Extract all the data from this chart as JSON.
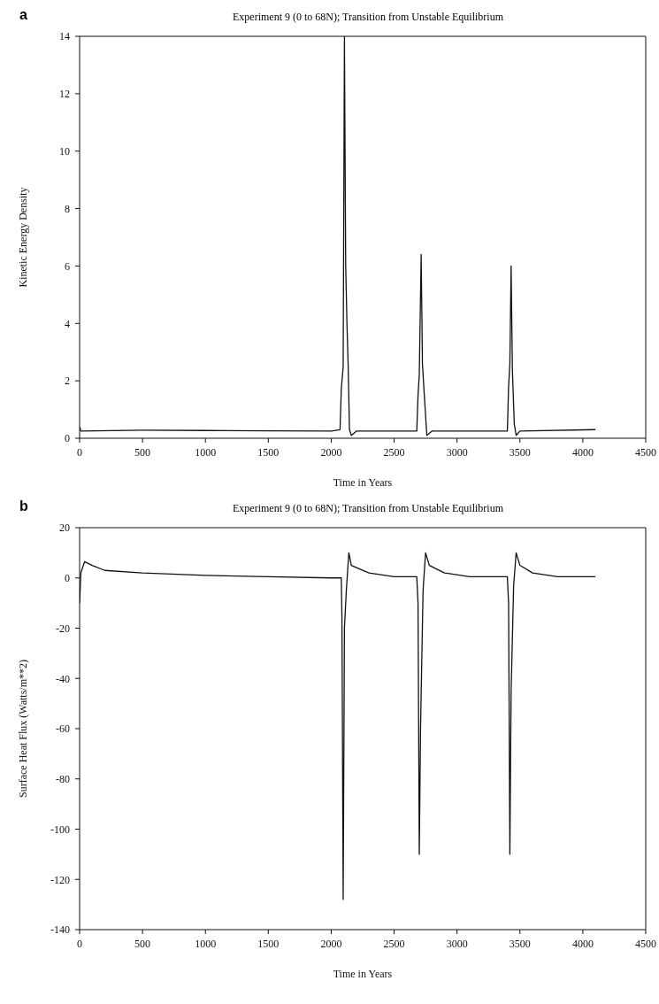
{
  "chart_data": [
    {
      "type": "line",
      "title": "Experiment 9 (0 to 68N); Transition from Unstable Equilibrium",
      "xlabel": "Time in Years",
      "ylabel": "Kinetic Energy Density",
      "annotations": [
        "a"
      ],
      "series": [
        {
          "color": "#111111",
          "x": [
            0,
            10,
            500,
            1000,
            1500,
            2000,
            2070,
            2080,
            2095,
            2105,
            2115,
            2125,
            2135,
            2145,
            2160,
            2200,
            2680,
            2690,
            2700,
            2715,
            2725,
            2740,
            2760,
            2800,
            3400,
            3410,
            3420,
            3430,
            3440,
            3455,
            3470,
            3500,
            4100
          ],
          "values": [
            0.4,
            0.25,
            0.28,
            0.27,
            0.26,
            0.25,
            0.3,
            1.7,
            2.5,
            14,
            6,
            4,
            2.5,
            0.3,
            0.1,
            0.25,
            0.25,
            1.5,
            2.2,
            6.4,
            2.6,
            1.5,
            0.1,
            0.25,
            0.25,
            1.8,
            2.6,
            6,
            2.4,
            0.5,
            0.1,
            0.25,
            0.3
          ]
        }
      ],
      "xlim": [
        0,
        4500
      ],
      "xticks": [
        0,
        500,
        1000,
        1500,
        2000,
        2500,
        3000,
        3500,
        4000,
        4500
      ],
      "ylim": [
        0,
        14
      ],
      "yticks": [
        0,
        2,
        4,
        6,
        8,
        10,
        12,
        14
      ],
      "grid": false,
      "legend": false
    },
    {
      "type": "line",
      "title": "Experiment 9 (0 to 68N); Transition from Unstable Equilibrium",
      "xlabel": "Time in Years",
      "ylabel": "Surface Heat Flux (Watts/m**2)",
      "annotations": [
        "b"
      ],
      "series": [
        {
          "color": "#111111",
          "x": [
            0,
            10,
            40,
            100,
            200,
            500,
            1000,
            1500,
            2000,
            2080,
            2085,
            2095,
            2105,
            2120,
            2140,
            2160,
            2300,
            2500,
            2680,
            2690,
            2700,
            2710,
            2730,
            2750,
            2780,
            2900,
            3100,
            3400,
            3410,
            3420,
            3430,
            3450,
            3470,
            3500,
            3600,
            3800,
            4100
          ],
          "values": [
            -10,
            2,
            6.5,
            5,
            3,
            2,
            1,
            0.5,
            0,
            0,
            -15,
            -128,
            -20,
            -5,
            10,
            5,
            2,
            0.5,
            0.5,
            -10,
            -110,
            -60,
            -5,
            10,
            5,
            2,
            0.5,
            0.5,
            -10,
            -110,
            -45,
            -3,
            10,
            5,
            2,
            0.5,
            0.5
          ]
        }
      ],
      "xlim": [
        0,
        4500
      ],
      "xticks": [
        0,
        500,
        1000,
        1500,
        2000,
        2500,
        3000,
        3500,
        4000,
        4500
      ],
      "ylim": [
        -140,
        20
      ],
      "yticks": [
        -140,
        -120,
        -100,
        -80,
        -60,
        -40,
        -20,
        0,
        20
      ],
      "grid": false,
      "legend": false
    }
  ]
}
